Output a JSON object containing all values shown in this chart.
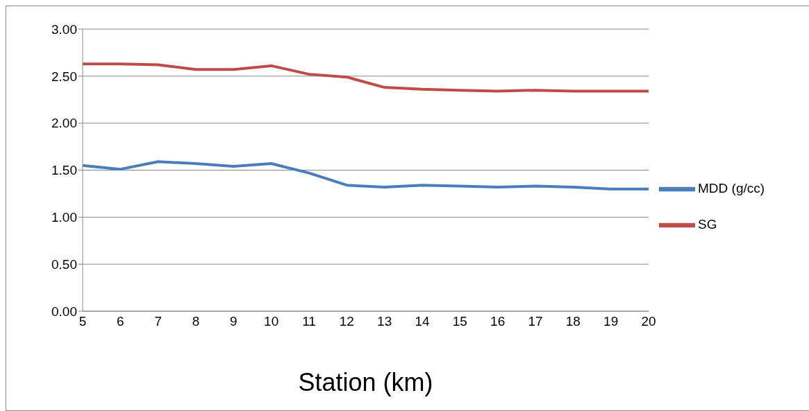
{
  "chart_data": {
    "type": "line",
    "xlabel": "Station (km)",
    "categories": [
      "5",
      "6",
      "7",
      "8",
      "9",
      "10",
      "11",
      "12",
      "13",
      "14",
      "15",
      "16",
      "17",
      "18",
      "19",
      "20"
    ],
    "series": [
      {
        "name": "MDD (g/cc)",
        "color": "#4a7ebb",
        "values": [
          1.55,
          1.51,
          1.59,
          1.57,
          1.54,
          1.57,
          1.47,
          1.34,
          1.32,
          1.34,
          1.33,
          1.32,
          1.33,
          1.32,
          1.3,
          1.3
        ]
      },
      {
        "name": "SG",
        "color": "#be4b48",
        "values": [
          2.63,
          2.63,
          2.62,
          2.57,
          2.57,
          2.61,
          2.52,
          2.49,
          2.38,
          2.36,
          2.35,
          2.34,
          2.35,
          2.34,
          2.34,
          2.34
        ]
      }
    ],
    "ylim": [
      0,
      3
    ],
    "yticks": [
      {
        "value": 0,
        "label": "0.00"
      },
      {
        "value": 0.5,
        "label": "0.50"
      },
      {
        "value": 1,
        "label": "1.00"
      },
      {
        "value": 1.5,
        "label": "1.50"
      },
      {
        "value": 2,
        "label": "2.00"
      },
      {
        "value": 2.5,
        "label": "2.50"
      },
      {
        "value": 3,
        "label": "3.00"
      }
    ],
    "grid": "y",
    "legend": "right",
    "marker": "none",
    "line_style": "solid"
  }
}
